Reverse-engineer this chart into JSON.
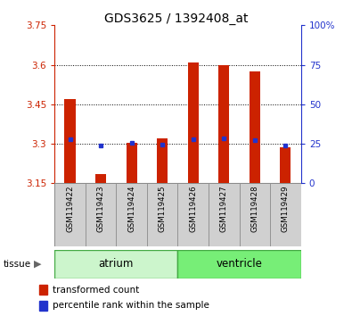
{
  "title": "GDS3625 / 1392408_at",
  "samples": [
    "GSM119422",
    "GSM119423",
    "GSM119424",
    "GSM119425",
    "GSM119426",
    "GSM119427",
    "GSM119428",
    "GSM119429"
  ],
  "transformed_count": [
    3.47,
    3.185,
    3.305,
    3.32,
    3.61,
    3.6,
    3.575,
    3.285
  ],
  "transformed_base": [
    3.15,
    3.15,
    3.15,
    3.15,
    3.15,
    3.15,
    3.15,
    3.15
  ],
  "percentile_rank_val": [
    3.318,
    3.293,
    3.305,
    3.298,
    3.318,
    3.32,
    3.313,
    3.293
  ],
  "ylim_left": [
    3.15,
    3.75
  ],
  "yticks_left": [
    3.15,
    3.3,
    3.45,
    3.6,
    3.75
  ],
  "ytick_labels_left": [
    "3.15",
    "3.3",
    "3.45",
    "3.6",
    "3.75"
  ],
  "ylim_right": [
    0,
    100
  ],
  "yticks_right": [
    0,
    25,
    50,
    75,
    100
  ],
  "ytick_labels_right": [
    "0",
    "25",
    "50",
    "75",
    "100%"
  ],
  "bar_color": "#cc2200",
  "dot_color": "#2233cc",
  "grid_color": "#000000",
  "bg_color": "#ffffff",
  "left_axis_color": "#cc2200",
  "right_axis_color": "#2233cc",
  "bar_width": 0.35,
  "atrium_color": "#ccf5cc",
  "ventricle_color": "#77ee77",
  "group_border_color": "#44aa44",
  "sample_box_color": "#d0d0d0",
  "sample_box_border": "#888888",
  "tissue_label": "tissue",
  "legend_items": [
    "transformed count",
    "percentile rank within the sample"
  ]
}
